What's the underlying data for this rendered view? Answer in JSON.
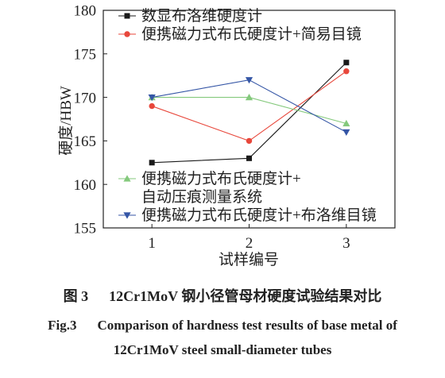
{
  "chart_data": {
    "type": "line",
    "categories": [
      1,
      2,
      3
    ],
    "xlim": [
      0.5,
      3.5
    ],
    "ylim": [
      155,
      180
    ],
    "yticks": [
      155,
      160,
      165,
      170,
      175,
      180
    ],
    "xlabel": "试样编号",
    "ylabel": "硬度/HBW",
    "grid": false,
    "series": [
      {
        "name": "数显布洛维硬度计",
        "values": [
          162.5,
          163,
          174
        ],
        "color": "#1a1a1a",
        "marker": "square",
        "legend": "top-left"
      },
      {
        "name": "便携磁力式布氏硬度计+简易目镜",
        "values": [
          169,
          165,
          173
        ],
        "color": "#e8473b",
        "marker": "circle",
        "legend": "top-left"
      },
      {
        "name": "便携磁力式布氏硬度计+\n自动压痕测量系统",
        "values": [
          170,
          170,
          167
        ],
        "color": "#84c97c",
        "marker": "triangle-up",
        "legend": "bottom-left"
      },
      {
        "name": "便携磁力式布氏硬度计+布洛维目镜",
        "values": [
          170,
          172,
          166
        ],
        "color": "#3556a6",
        "marker": "triangle-down",
        "legend": "bottom-left"
      }
    ]
  },
  "caption": {
    "zh_label": "图 3",
    "zh_text": "12Cr1MoV 钢小径管母材硬度试验结果对比",
    "en_label": "Fig.3",
    "en_line1": "Comparison of hardness test results of base metal of",
    "en_line2": "12Cr1MoV steel small-diameter tubes"
  }
}
